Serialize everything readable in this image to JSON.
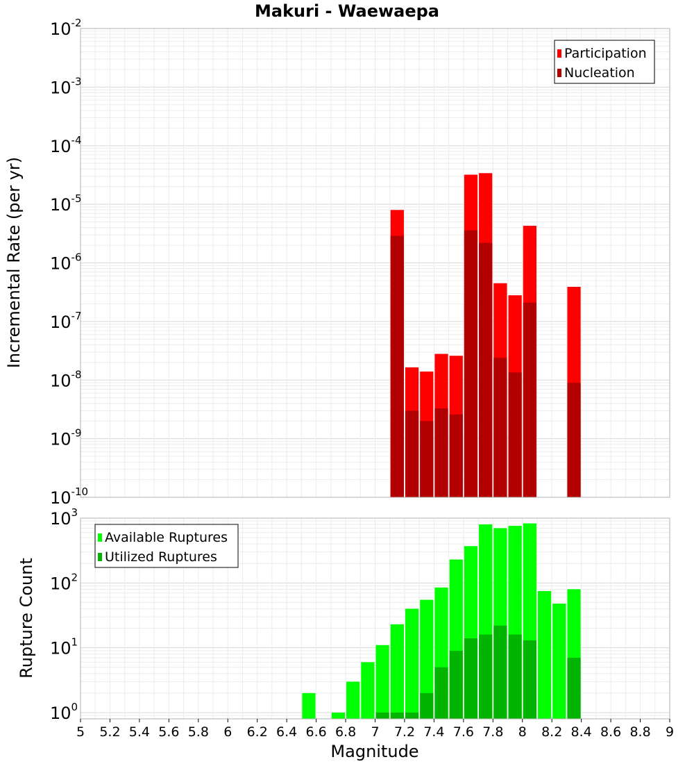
{
  "chart_data": [
    {
      "type": "bar",
      "title": "Makuri - Waewaepa",
      "xlabel": "",
      "ylabel": "Incremental Rate (per yr)",
      "yscale": "log",
      "ylim": [
        1e-10,
        0.01
      ],
      "xlim": [
        5,
        9
      ],
      "bar_width": 0.1,
      "grid": true,
      "legend": "top-right",
      "x": [
        7.15,
        7.25,
        7.35,
        7.45,
        7.55,
        7.65,
        7.75,
        7.85,
        7.95,
        8.05,
        8.35
      ],
      "series": [
        {
          "name": "Participation",
          "color": "#ff0000",
          "values": [
            8e-06,
            1.65e-08,
            1.4e-08,
            2.8e-08,
            2.6e-08,
            3.2e-05,
            3.4e-05,
            4.5e-07,
            2.8e-07,
            4.3e-06,
            3.9e-07
          ]
        },
        {
          "name": "Nucleation",
          "color": "#b20000",
          "values": [
            2.9e-06,
            3e-09,
            2e-09,
            3.3e-09,
            2.6e-09,
            3.6e-06,
            2.2e-06,
            2.4e-08,
            1.35e-08,
            2.1e-07,
            9e-09
          ]
        }
      ]
    },
    {
      "type": "bar",
      "title": "",
      "xlabel": "Magnitude",
      "ylabel": "Rupture Count",
      "yscale": "log",
      "ylim": [
        0.8,
        1000
      ],
      "xlim": [
        5,
        9
      ],
      "bar_width": 0.1,
      "grid": true,
      "legend": "top-left",
      "x": [
        6.55,
        6.75,
        6.85,
        6.95,
        7.05,
        7.15,
        7.25,
        7.35,
        7.45,
        7.55,
        7.65,
        7.75,
        7.85,
        7.95,
        8.05,
        8.15,
        8.25,
        8.35
      ],
      "series": [
        {
          "name": "Available Ruptures",
          "color": "#00ff00",
          "values": [
            2,
            1,
            3,
            6,
            11,
            23,
            40,
            55,
            85,
            230,
            370,
            800,
            700,
            760,
            830,
            75,
            48,
            80
          ]
        },
        {
          "name": "Utilized Ruptures",
          "color": "#00b400",
          "values": [
            null,
            null,
            null,
            null,
            1,
            1,
            1,
            2,
            5,
            9,
            14,
            16,
            22,
            16,
            13,
            null,
            null,
            7
          ]
        }
      ]
    }
  ],
  "x_ticks": [
    "5",
    "5.2",
    "5.4",
    "5.6",
    "5.8",
    "6",
    "6.2",
    "6.4",
    "6.6",
    "6.8",
    "7",
    "7.2",
    "7.4",
    "7.6",
    "7.8",
    "8",
    "8.2",
    "8.4",
    "8.6",
    "8.8",
    "9"
  ],
  "top_y_ticks": [
    {
      "base": "10",
      "exp": "-2"
    },
    {
      "base": "10",
      "exp": "-3"
    },
    {
      "base": "10",
      "exp": "-4"
    },
    {
      "base": "10",
      "exp": "-5"
    },
    {
      "base": "10",
      "exp": "-6"
    },
    {
      "base": "10",
      "exp": "-7"
    },
    {
      "base": "10",
      "exp": "-8"
    },
    {
      "base": "10",
      "exp": "-9"
    },
    {
      "base": "10",
      "exp": "-10"
    }
  ],
  "bottom_y_ticks": [
    {
      "base": "10",
      "exp": "3"
    },
    {
      "base": "10",
      "exp": "2"
    },
    {
      "base": "10",
      "exp": "1"
    },
    {
      "base": "10",
      "exp": "0"
    }
  ]
}
